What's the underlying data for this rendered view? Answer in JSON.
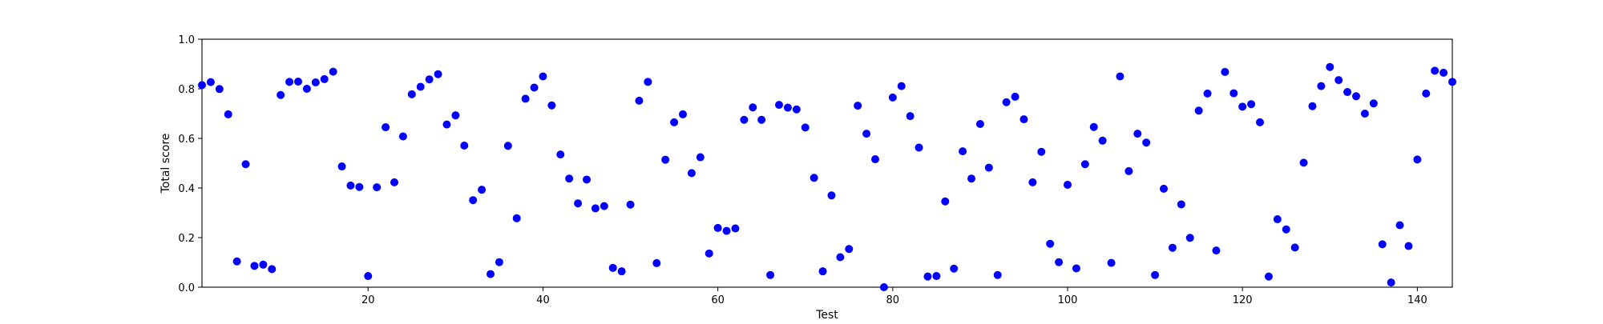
{
  "chart_data": {
    "type": "scatter",
    "title": "",
    "xlabel": "Test",
    "ylabel": "Total score",
    "xlim": [
      1,
      144
    ],
    "ylim": [
      0,
      1
    ],
    "xticks": [
      20,
      40,
      60,
      80,
      100,
      120,
      140
    ],
    "yticks": [
      0.0,
      0.2,
      0.4,
      0.6,
      0.8,
      1.0
    ],
    "ytick_labels": [
      "0.0",
      "0.2",
      "0.4",
      "0.6",
      "0.8",
      "1.0"
    ],
    "grid": false,
    "legend": "none",
    "marker_color": "#0000ff",
    "series": [
      {
        "x": [
          1,
          2,
          3,
          4,
          5,
          6,
          7,
          8,
          9,
          10,
          11,
          12,
          13,
          14,
          15,
          16,
          17,
          18,
          19,
          20,
          21,
          22,
          23,
          24,
          25,
          26,
          27,
          28,
          29,
          30,
          31,
          32,
          33,
          34,
          35,
          36,
          37,
          38,
          39,
          40,
          41,
          42,
          43,
          44,
          45,
          46,
          47,
          48,
          49,
          50,
          51,
          52,
          53,
          54,
          55,
          56,
          57,
          58,
          59,
          60,
          61,
          62,
          63,
          64,
          65,
          66,
          67,
          68,
          69,
          70,
          71,
          72,
          73,
          74,
          75,
          76,
          77,
          78,
          79,
          80,
          81,
          82,
          83,
          84,
          85,
          86,
          87,
          88,
          89,
          90,
          91,
          92,
          93,
          94,
          95,
          96,
          97,
          98,
          99,
          100,
          101,
          102,
          103,
          104,
          105,
          106,
          107,
          108,
          109,
          110,
          111,
          112,
          113,
          114,
          115,
          116,
          117,
          118,
          119,
          120,
          121,
          122,
          123,
          124,
          125,
          126,
          127,
          128,
          129,
          130,
          131,
          132,
          133,
          134,
          135,
          136,
          137,
          138,
          139,
          140,
          141,
          142,
          143,
          144
        ],
        "y": [
          0.815,
          0.827,
          0.799,
          0.697,
          0.104,
          0.496,
          0.086,
          0.091,
          0.073,
          0.775,
          0.828,
          0.829,
          0.8,
          0.826,
          0.839,
          0.869,
          0.487,
          0.41,
          0.404,
          0.045,
          0.403,
          0.645,
          0.423,
          0.608,
          0.778,
          0.808,
          0.838,
          0.859,
          0.656,
          0.693,
          0.571,
          0.351,
          0.393,
          0.053,
          0.101,
          0.57,
          0.278,
          0.76,
          0.805,
          0.85,
          0.733,
          0.535,
          0.438,
          0.338,
          0.434,
          0.318,
          0.327,
          0.078,
          0.064,
          0.333,
          0.752,
          0.828,
          0.097,
          0.514,
          0.665,
          0.697,
          0.46,
          0.524,
          0.136,
          0.239,
          0.227,
          0.237,
          0.675,
          0.725,
          0.675,
          0.049,
          0.735,
          0.724,
          0.717,
          0.644,
          0.441,
          0.064,
          0.37,
          0.121,
          0.154,
          0.732,
          0.619,
          0.516,
          0.0,
          0.765,
          0.811,
          0.69,
          0.563,
          0.043,
          0.045,
          0.346,
          0.075,
          0.548,
          0.438,
          0.658,
          0.482,
          0.049,
          0.746,
          0.768,
          0.677,
          0.423,
          0.546,
          0.175,
          0.101,
          0.413,
          0.076,
          0.496,
          0.646,
          0.591,
          0.098,
          0.85,
          0.468,
          0.619,
          0.583,
          0.049,
          0.397,
          0.159,
          0.334,
          0.199,
          0.712,
          0.781,
          0.148,
          0.868,
          0.782,
          0.728,
          0.738,
          0.665,
          0.043,
          0.274,
          0.233,
          0.16,
          0.502,
          0.73,
          0.811,
          0.888,
          0.835,
          0.787,
          0.77,
          0.7,
          0.741,
          0.173,
          0.019,
          0.25,
          0.166,
          0.515,
          0.781,
          0.873,
          0.865,
          0.828
        ]
      }
    ]
  }
}
